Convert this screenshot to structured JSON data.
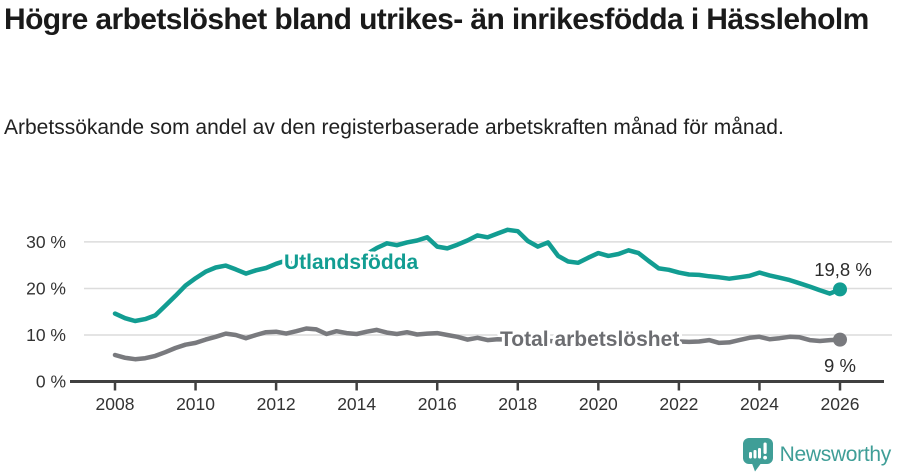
{
  "header": {
    "title": "Högre arbetslöshet bland utrikes- än inrikesfödda i Hässleholm",
    "subtitle": "Arbetssökande som andel av den registerbaserade arbetskraften månad för månad."
  },
  "chart_data": {
    "type": "line",
    "x_start": 2008,
    "x_step_years": 0.25,
    "x_ticks": [
      2008,
      2010,
      2012,
      2014,
      2016,
      2018,
      2020,
      2022,
      2024,
      2026
    ],
    "y_ticks": [
      {
        "value": 30,
        "label": "30 %"
      },
      {
        "value": 20,
        "label": "20 %"
      },
      {
        "value": 10,
        "label": "10 %"
      },
      {
        "value": 0,
        "label": "0 %"
      }
    ],
    "ylim": [
      0,
      33
    ],
    "grid": "horizontal",
    "legend_position": "inline-labels",
    "colors": {
      "foreign_born": "#129d92",
      "total": "#797a7e",
      "grid": "#dcdcdc",
      "axis": "#404040",
      "axis_text": "#333333",
      "end_label_text": "#2c2c2c",
      "label_total": "#6c6d71"
    },
    "series": [
      {
        "name": "Utlandsfödda",
        "end_label": "19,8 %",
        "end_value": 19.8,
        "values": [
          14.6,
          13.6,
          13.0,
          13.4,
          14.2,
          16.3,
          18.4,
          20.6,
          22.2,
          23.6,
          24.5,
          24.9,
          24.1,
          23.2,
          23.9,
          24.4,
          25.3,
          26.0,
          24.8,
          24.4,
          24.3,
          24.6,
          25.0,
          25.6,
          26.2,
          27.4,
          28.7,
          29.7,
          29.3,
          29.9,
          30.3,
          31.0,
          29.0,
          28.6,
          29.4,
          30.3,
          31.4,
          31.0,
          31.8,
          32.6,
          32.3,
          30.2,
          29.0,
          29.9,
          27.0,
          25.8,
          25.5,
          26.6,
          27.6,
          27.0,
          27.4,
          28.2,
          27.6,
          25.9,
          24.3,
          24.0,
          23.4,
          23.0,
          22.9,
          22.6,
          22.4,
          22.1,
          22.4,
          22.7,
          23.4,
          22.8,
          22.3,
          21.8,
          21.1,
          20.4,
          19.6,
          18.9,
          19.8
        ]
      },
      {
        "name": "Total arbetslöshet",
        "end_label": "9 %",
        "end_value": 9.0,
        "values": [
          5.7,
          5.1,
          4.8,
          5.0,
          5.5,
          6.3,
          7.2,
          7.9,
          8.3,
          9.0,
          9.6,
          10.3,
          10.0,
          9.3,
          10.0,
          10.6,
          10.7,
          10.3,
          10.8,
          11.4,
          11.2,
          10.2,
          10.8,
          10.4,
          10.2,
          10.7,
          11.1,
          10.5,
          10.2,
          10.6,
          10.1,
          10.3,
          10.4,
          10.0,
          9.6,
          9.0,
          9.4,
          8.9,
          9.1,
          9.0,
          8.9,
          8.8,
          8.7,
          8.7,
          8.6,
          8.6,
          8.5,
          8.6,
          8.9,
          9.3,
          9.3,
          9.0,
          8.9,
          8.8,
          8.7,
          8.6,
          8.6,
          8.5,
          8.6,
          8.9,
          8.3,
          8.4,
          8.9,
          9.4,
          9.6,
          9.1,
          9.3,
          9.6,
          9.5,
          8.9,
          8.7,
          8.9,
          9.0
        ]
      }
    ]
  },
  "footer": {
    "brand": "Newsworthy",
    "brand_color": "#3f9e97"
  }
}
